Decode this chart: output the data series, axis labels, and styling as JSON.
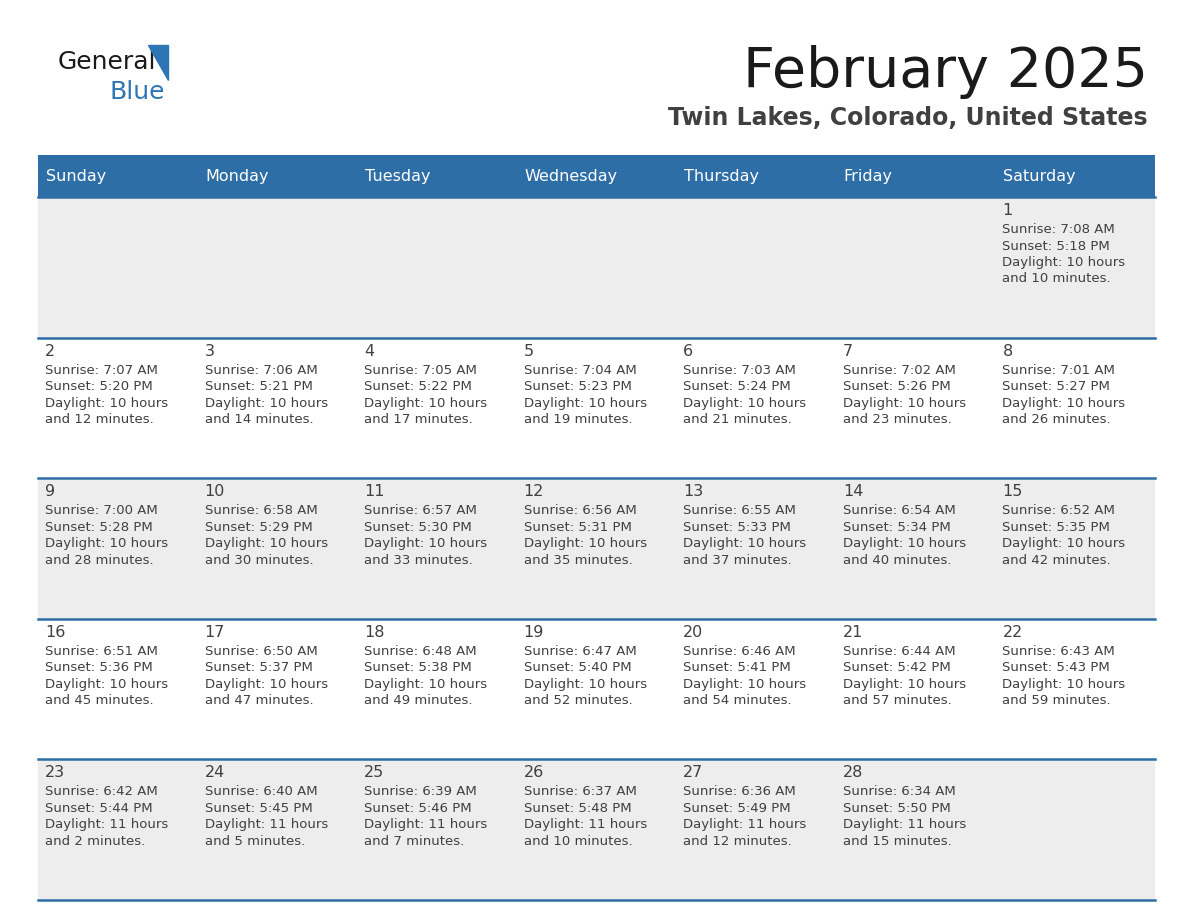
{
  "title": "February 2025",
  "subtitle": "Twin Lakes, Colorado, United States",
  "header_bg_color": "#2E6EA6",
  "header_text_color": "#FFFFFF",
  "day_names": [
    "Sunday",
    "Monday",
    "Tuesday",
    "Wednesday",
    "Thursday",
    "Friday",
    "Saturday"
  ],
  "row_colors": [
    "#EDEDED",
    "#FFFFFF",
    "#EDEDED",
    "#FFFFFF",
    "#EDEDED"
  ],
  "border_color": "#2E6EA6",
  "date_color": "#404040",
  "text_color": "#404040",
  "logo_general_color": "#1A1A1A",
  "logo_blue_color": "#2E75B6",
  "days": [
    {
      "day": 1,
      "row": 0,
      "col": 6,
      "sunrise": "7:08 AM",
      "sunset": "5:18 PM",
      "daylight": "10 hours and 10 minutes."
    },
    {
      "day": 2,
      "row": 1,
      "col": 0,
      "sunrise": "7:07 AM",
      "sunset": "5:20 PM",
      "daylight": "10 hours and 12 minutes."
    },
    {
      "day": 3,
      "row": 1,
      "col": 1,
      "sunrise": "7:06 AM",
      "sunset": "5:21 PM",
      "daylight": "10 hours and 14 minutes."
    },
    {
      "day": 4,
      "row": 1,
      "col": 2,
      "sunrise": "7:05 AM",
      "sunset": "5:22 PM",
      "daylight": "10 hours and 17 minutes."
    },
    {
      "day": 5,
      "row": 1,
      "col": 3,
      "sunrise": "7:04 AM",
      "sunset": "5:23 PM",
      "daylight": "10 hours and 19 minutes."
    },
    {
      "day": 6,
      "row": 1,
      "col": 4,
      "sunrise": "7:03 AM",
      "sunset": "5:24 PM",
      "daylight": "10 hours and 21 minutes."
    },
    {
      "day": 7,
      "row": 1,
      "col": 5,
      "sunrise": "7:02 AM",
      "sunset": "5:26 PM",
      "daylight": "10 hours and 23 minutes."
    },
    {
      "day": 8,
      "row": 1,
      "col": 6,
      "sunrise": "7:01 AM",
      "sunset": "5:27 PM",
      "daylight": "10 hours and 26 minutes."
    },
    {
      "day": 9,
      "row": 2,
      "col": 0,
      "sunrise": "7:00 AM",
      "sunset": "5:28 PM",
      "daylight": "10 hours and 28 minutes."
    },
    {
      "day": 10,
      "row": 2,
      "col": 1,
      "sunrise": "6:58 AM",
      "sunset": "5:29 PM",
      "daylight": "10 hours and 30 minutes."
    },
    {
      "day": 11,
      "row": 2,
      "col": 2,
      "sunrise": "6:57 AM",
      "sunset": "5:30 PM",
      "daylight": "10 hours and 33 minutes."
    },
    {
      "day": 12,
      "row": 2,
      "col": 3,
      "sunrise": "6:56 AM",
      "sunset": "5:31 PM",
      "daylight": "10 hours and 35 minutes."
    },
    {
      "day": 13,
      "row": 2,
      "col": 4,
      "sunrise": "6:55 AM",
      "sunset": "5:33 PM",
      "daylight": "10 hours and 37 minutes."
    },
    {
      "day": 14,
      "row": 2,
      "col": 5,
      "sunrise": "6:54 AM",
      "sunset": "5:34 PM",
      "daylight": "10 hours and 40 minutes."
    },
    {
      "day": 15,
      "row": 2,
      "col": 6,
      "sunrise": "6:52 AM",
      "sunset": "5:35 PM",
      "daylight": "10 hours and 42 minutes."
    },
    {
      "day": 16,
      "row": 3,
      "col": 0,
      "sunrise": "6:51 AM",
      "sunset": "5:36 PM",
      "daylight": "10 hours and 45 minutes."
    },
    {
      "day": 17,
      "row": 3,
      "col": 1,
      "sunrise": "6:50 AM",
      "sunset": "5:37 PM",
      "daylight": "10 hours and 47 minutes."
    },
    {
      "day": 18,
      "row": 3,
      "col": 2,
      "sunrise": "6:48 AM",
      "sunset": "5:38 PM",
      "daylight": "10 hours and 49 minutes."
    },
    {
      "day": 19,
      "row": 3,
      "col": 3,
      "sunrise": "6:47 AM",
      "sunset": "5:40 PM",
      "daylight": "10 hours and 52 minutes."
    },
    {
      "day": 20,
      "row": 3,
      "col": 4,
      "sunrise": "6:46 AM",
      "sunset": "5:41 PM",
      "daylight": "10 hours and 54 minutes."
    },
    {
      "day": 21,
      "row": 3,
      "col": 5,
      "sunrise": "6:44 AM",
      "sunset": "5:42 PM",
      "daylight": "10 hours and 57 minutes."
    },
    {
      "day": 22,
      "row": 3,
      "col": 6,
      "sunrise": "6:43 AM",
      "sunset": "5:43 PM",
      "daylight": "10 hours and 59 minutes."
    },
    {
      "day": 23,
      "row": 4,
      "col": 0,
      "sunrise": "6:42 AM",
      "sunset": "5:44 PM",
      "daylight": "11 hours and 2 minutes."
    },
    {
      "day": 24,
      "row": 4,
      "col": 1,
      "sunrise": "6:40 AM",
      "sunset": "5:45 PM",
      "daylight": "11 hours and 5 minutes."
    },
    {
      "day": 25,
      "row": 4,
      "col": 2,
      "sunrise": "6:39 AM",
      "sunset": "5:46 PM",
      "daylight": "11 hours and 7 minutes."
    },
    {
      "day": 26,
      "row": 4,
      "col": 3,
      "sunrise": "6:37 AM",
      "sunset": "5:48 PM",
      "daylight": "11 hours and 10 minutes."
    },
    {
      "day": 27,
      "row": 4,
      "col": 4,
      "sunrise": "6:36 AM",
      "sunset": "5:49 PM",
      "daylight": "11 hours and 12 minutes."
    },
    {
      "day": 28,
      "row": 4,
      "col": 5,
      "sunrise": "6:34 AM",
      "sunset": "5:50 PM",
      "daylight": "11 hours and 15 minutes."
    }
  ]
}
